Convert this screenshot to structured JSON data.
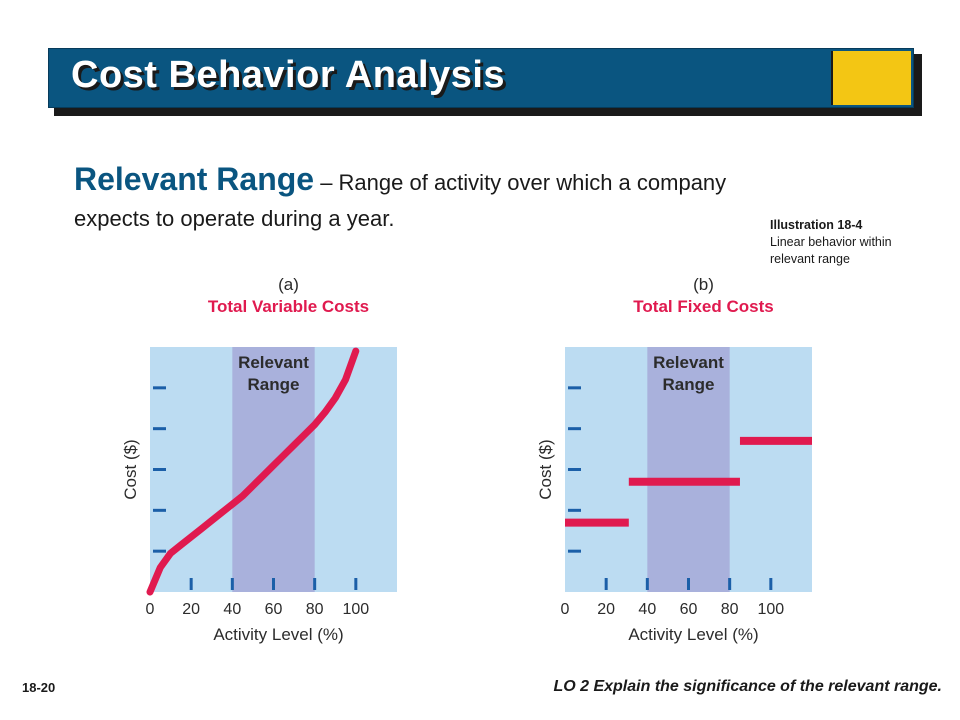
{
  "slide": {
    "title": "Cost Behavior Analysis",
    "definition_term": "Relevant Range",
    "definition_text": " – Range of activity over which a company expects to operate during a year.",
    "illustration_number": "Illustration 18-4",
    "illustration_caption_line1": "Linear behavior within",
    "illustration_caption_line2": "relevant range",
    "page_number": "18-20",
    "learning_objective": "LO 2  Explain the significance of the relevant range."
  },
  "colors": {
    "banner": "#0a5580",
    "accent": "#f3c614",
    "plot_background": "#bcdcf2",
    "relevant_band": "#a9b1dc",
    "series": "#e01a4f",
    "title_red": "#e01a4f",
    "tick_blue": "#1b5fa8"
  },
  "chart_data": [
    {
      "type": "line",
      "panel_label": "(a)",
      "title": "Total Variable Costs",
      "xlabel": "Activity Level (%)",
      "ylabel": "Cost ($)",
      "x_ticks": [
        "0",
        "20",
        "40",
        "60",
        "80",
        "100"
      ],
      "y_tick_count": 5,
      "xlim": [
        0,
        120
      ],
      "ylim": [
        0,
        6
      ],
      "band": {
        "label_line1": "Relevant",
        "label_line2": "Range",
        "x_from": 40,
        "x_to": 80
      },
      "series": [
        {
          "x": [
            0,
            5,
            10,
            15,
            20,
            25,
            30,
            35,
            40,
            45,
            50,
            55,
            60,
            65,
            70,
            75,
            80,
            85,
            90,
            95,
            100
          ],
          "y": [
            0.0,
            0.6,
            0.95,
            1.15,
            1.35,
            1.55,
            1.75,
            1.95,
            2.15,
            2.35,
            2.6,
            2.85,
            3.1,
            3.35,
            3.6,
            3.85,
            4.1,
            4.4,
            4.75,
            5.2,
            5.9
          ]
        }
      ],
      "grid": false
    },
    {
      "type": "line",
      "panel_label": "(b)",
      "title": "Total Fixed Costs",
      "xlabel": "Activity Level (%)",
      "ylabel": "Cost ($)",
      "x_ticks": [
        "0",
        "20",
        "40",
        "60",
        "80",
        "100"
      ],
      "y_tick_count": 5,
      "xlim": [
        0,
        120
      ],
      "ylim": [
        0,
        6
      ],
      "band": {
        "label_line1": "Relevant",
        "label_line2": "Range",
        "x_from": 40,
        "x_to": 80
      },
      "segments": [
        {
          "x_from": 0,
          "x_to": 31,
          "y": 1.7
        },
        {
          "x_from": 31,
          "x_to": 85,
          "y": 2.7
        },
        {
          "x_from": 85,
          "x_to": 120,
          "y": 3.7
        }
      ],
      "grid": false
    }
  ]
}
